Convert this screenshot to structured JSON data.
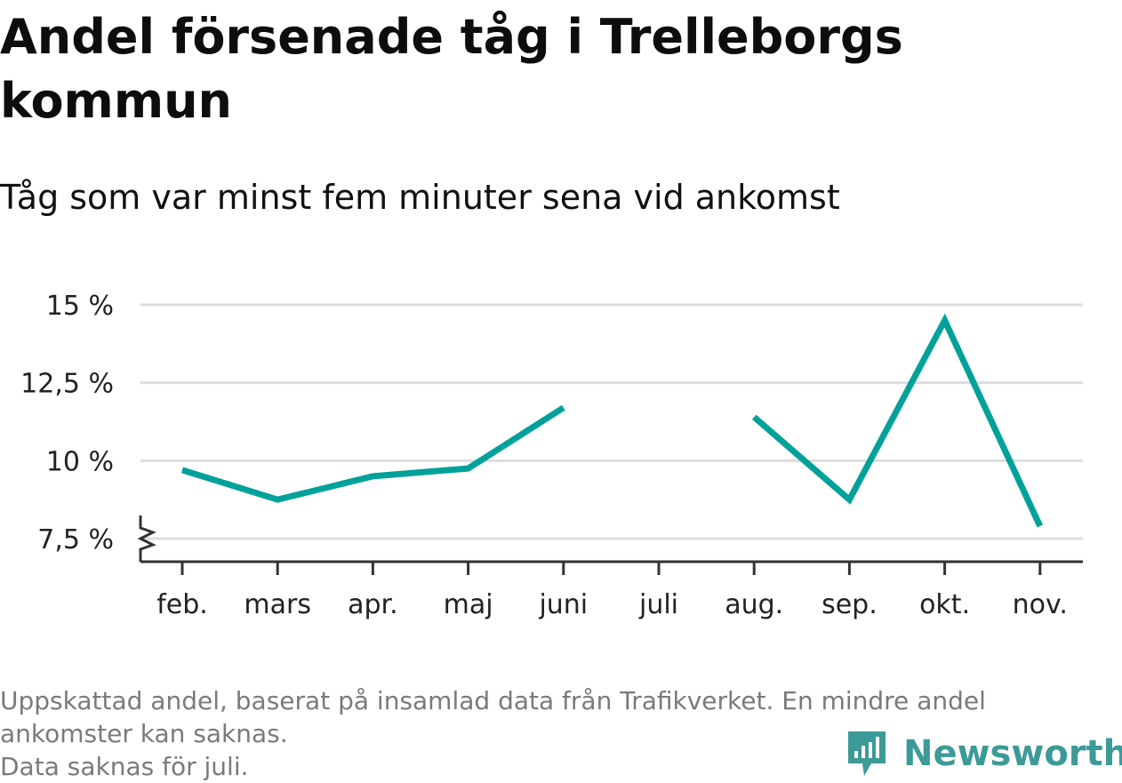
{
  "title": "Andel försenade tåg i Trelleborgs kommun",
  "subtitle": "Tåg som var minst fem minuter sena vid ankomst",
  "footer": {
    "note_line1": "Uppskattad andel, baserat på insamlad data från Trafikverket. En mindre andel",
    "note_line2": "ankomster kan saknas.",
    "note_line3": "Data saknas för juli."
  },
  "brand": {
    "name": "Newsworthy",
    "logo_icon": "newsworthy-chart-bubble-icon"
  },
  "colors": {
    "line": "#00a19a",
    "grid": "#dddddd",
    "axis": "#333333",
    "text": "#222222",
    "muted": "#7a7a7a",
    "brand": "#3c9a98"
  },
  "chart_data": {
    "type": "line",
    "categories": [
      "feb.",
      "mars",
      "apr.",
      "maj",
      "juni",
      "juli",
      "aug.",
      "sep.",
      "okt.",
      "nov."
    ],
    "series": [
      {
        "values": [
          9.7,
          8.75,
          9.5,
          9.75,
          11.7,
          null,
          11.4,
          8.75,
          14.5,
          7.9
        ]
      }
    ],
    "y_ticks": [
      7.5,
      10,
      12.5,
      15
    ],
    "y_tick_labels": [
      "7,5 %",
      "10 %",
      "12,5 %",
      "15 %"
    ],
    "ylim": [
      7.5,
      15
    ],
    "y_axis_break": true,
    "grid": true
  }
}
